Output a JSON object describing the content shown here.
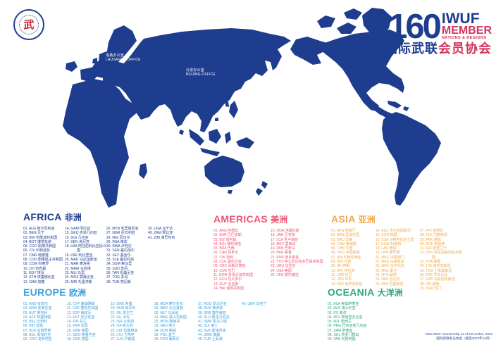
{
  "logo": {
    "glyph": "武"
  },
  "title": {
    "number": "160",
    "org": "IWUF",
    "member": "MEMBER",
    "sub": "NATIONS & REGIONS",
    "cn_blue": "国际武联",
    "cn_red": "会员协会"
  },
  "map": {
    "land_color": "#1f3d8e",
    "offices": [
      {
        "cn": "洛桑办公室",
        "en": "LAUSANNE OFFICE"
      },
      {
        "cn": "北京办公室",
        "en": "BEIJING OFFICE"
      }
    ]
  },
  "sections": [
    {
      "id": "africa",
      "name": "AFRICA",
      "cn": "非洲",
      "color": "#1f3d8e",
      "columns": [
        [
          "01. ALG 阿尔及利亚",
          "02. BEN 贝宁",
          "03. BDI 布隆迪共和国",
          "04. BOT 博茨瓦纳",
          "05. CGO 刚果共和国",
          "06. CIV 科特迪瓦",
          "07. CMR 喀麦隆",
          "08. COD 刚果民主共和国",
          "09. COM 科摩罗",
          "10. DJI 吉布提",
          "11. EGY 埃及",
          "12. ETH 埃塞俄比亚",
          "13. GAB 加蓬"
        ],
        [
          "14. GAM 冈比亚",
          "15. GEQ 赤道几内亚",
          "16. GUI 几内亚",
          "17. KEN 肯尼亚",
          "18. LBA 阿拉伯利比亚民众国",
          "19. LBR 利比里亚",
          "20. MAD 马达加斯加",
          "21. MAR 摩洛哥",
          "22. MAW 马拉维",
          "23. MLI 马里",
          "24. MOZ 莫桑比克",
          "25. MRI 毛里求斯"
        ],
        [
          "26. MTN 毛里塔尼亚",
          "27. NGR 尼日利亚",
          "28. NIG 尼日尔",
          "29. RSA 南非",
          "30. RWA 卢旺达",
          "31. SEN 塞内加尔",
          "32. SEY 塞舌尔",
          "33. SLE 塞拉利昂",
          "34. SOM 索马里",
          "35. SUD 苏丹",
          "36. TAN 坦桑尼亚",
          "37. TOG 多哥",
          "38. TUN 突尼斯"
        ],
        [
          "39. UGA 乌干达",
          "40. ZAM 赞比亚",
          "41. ZIM 津巴布韦"
        ]
      ]
    },
    {
      "id": "americas",
      "name": "AMERICAS",
      "cn": "美洲",
      "color": "#ee5575",
      "columns": [
        [
          "01. ARG 阿根廷",
          "02. BAR 巴巴多斯",
          "03. BIZ 伯利兹",
          "04. BOL 玻利维亚",
          "05. BRA 巴西",
          "06. CAN 加拿大",
          "07. CHI 智利",
          "08. COL 哥伦比亚",
          "09. CRC 哥斯达黎加",
          "10. CUB 古巴",
          "11. DOM 多米尼加共和国",
          "12. ECU 厄瓜多尔",
          "13. GUY 圭亚那",
          "14. HAI 海地共和国"
        ],
        [
          "15. HON 洪都拉斯",
          "16. JAM 牙买加",
          "17. LCA 圣卢西亚",
          "18. MEX 墨西哥",
          "19. PAN 巴拿马",
          "20. PER 秘鲁",
          "21. PUR 波多黎各",
          "22. TTO 特立尼达和多巴哥共和国",
          "23. URU 乌拉圭",
          "24. USA 美国",
          "25. VEN 委内瑞拉"
        ]
      ]
    },
    {
      "id": "asia",
      "name": "ASIA",
      "cn": "亚洲",
      "color": "#eda94d",
      "columns": [
        [
          "01. AFG 阿富汗",
          "02. BAN 孟加拉国",
          "03. BRU 文莱",
          "04. CAM 柬埔寨",
          "05. CHN 中国",
          "06. HKG 中国香港",
          "07. INA 印度尼西亚",
          "08. IND 印度",
          "09. IRI 伊朗",
          "10. IRQ 伊拉克",
          "11. JOR 约旦",
          "12. JPN 日本",
          "13. KAZ 哈萨克斯坦"
        ],
        [
          "14. KGZ 吉尔吉斯斯坦",
          "15. KOR 韩国",
          "16. KSA 沙特阿拉伯王国",
          "17. KUW 科威特",
          "18. LAO 老挝",
          "19. LBN 黎巴嫩",
          "20. MAC 中国澳门",
          "21. MAS 马来西亚",
          "22. MDV 马尔代夫",
          "23. MGL 蒙古",
          "24. MYA 缅甸",
          "25. NEP 尼泊尔",
          "26. PAK 巴基斯坦"
        ],
        [
          "27. PHI 菲律宾",
          "28. PLE 巴勒斯坦",
          "29. PRK 朝鲜",
          "30. SGP 新加坡",
          "31. SRI 斯里兰卡",
          "32. SYR 阿拉伯叙利亚共和国",
          "33. THA 泰国",
          "34. TJK 塔吉克斯坦",
          "35. TKM 土库曼斯坦",
          "36. TPE 中华台北",
          "37. UZB 乌兹别克斯坦",
          "38. VIE 越南",
          "39. YEM 也门"
        ]
      ]
    },
    {
      "id": "europe",
      "name": "EUROPE",
      "cn": "欧洲",
      "color": "#3f9ed9",
      "columns": [
        [
          "01. AND 安道尔",
          "02. ARM 亚美尼亚",
          "03. AUT 奥地利",
          "04. AZE 阿塞拜疆",
          "05. BEL 比利时",
          "06. BIH 波黑",
          "07. BLR 白俄罗斯",
          "08. BUL 保加利亚",
          "09. CRO 克罗地亚"
        ],
        [
          "10. CYP 塞浦路斯",
          "11. CZE 捷克共和国",
          "12. ESP 西班牙",
          "13. EST 爱沙尼亚",
          "14. FIN 芬兰",
          "15. FRA 法国",
          "16. GBR 英国",
          "17. GEO 格鲁吉亚",
          "18. GER 德国"
        ],
        [
          "19. GRE 希腊",
          "20. HUN 匈牙利",
          "21. IRL 爱尔兰",
          "22. ISL 冰岛",
          "23. ISR 以色列",
          "24. ITA 意大利",
          "25. LAT 拉脱维亚",
          "26. LTU 立陶宛",
          "27. LUX 卢森堡"
        ],
        [
          "28. MDA 摩尔多瓦",
          "29. MKD 北马其顿",
          "30. MLT 马耳他",
          "31. MNE 黑山共和国",
          "32. MON 摩纳哥",
          "33. NED 荷兰",
          "34. NOR 挪威",
          "35. POL 波兰",
          "36. POR 葡萄牙"
        ],
        [
          "37. ROU 罗马尼亚",
          "38. RUS 俄罗斯",
          "39. SRB 塞尔维亚",
          "40. SLO 斯洛文尼亚",
          "41. SMR 圣马力诺",
          "42. SUI 瑞士",
          "43. SVK 斯洛伐克",
          "44. SWE 瑞典",
          "45. TUR 土耳其"
        ],
        [
          "46. UKR 乌克兰"
        ]
      ]
    },
    {
      "id": "oceania",
      "name": "OCEANIA",
      "cn": "大洋洲",
      "color": "#2ea878",
      "columns": [
        [
          "01. ASA 美属萨摩亚",
          "02. AUS 澳大利亚",
          "03. FIJ 斐济",
          "04. NCL 新喀里多尼亚",
          "05. NZL 新西兰",
          "06. PNG 巴布亚新几内亚",
          "07. SAM 萨摩亚",
          "08. SOL 所罗门群岛",
          "09. VAN 瓦努阿图"
        ]
      ]
    }
  ],
  "note": {
    "line1": "Note:IWUF membership as of December, 2023",
    "line2": "国际武联会员协会（截至2023年12月）"
  }
}
